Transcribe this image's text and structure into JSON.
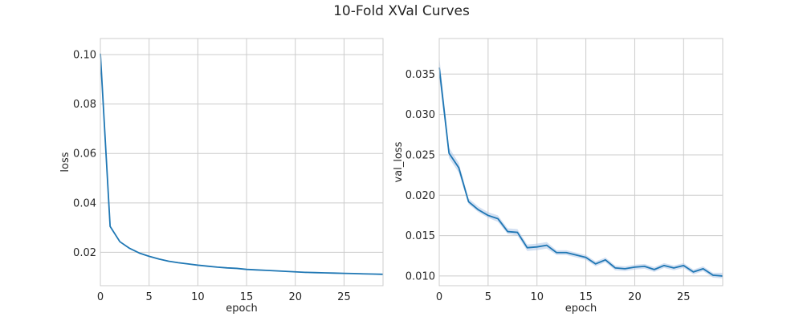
{
  "figure": {
    "title": "10-Fold XVal Curves"
  },
  "chart_data": [
    {
      "type": "line",
      "title": "",
      "xlabel": "epoch",
      "ylabel": "loss",
      "xlim": [
        0,
        29
      ],
      "ylim": [
        0.0065,
        0.1065
      ],
      "xticks": [
        0,
        5,
        10,
        15,
        20,
        25
      ],
      "yticks": [
        0.02,
        0.04,
        0.06,
        0.08,
        0.1
      ],
      "ytick_labels": [
        "0.02",
        "0.04",
        "0.06",
        "0.08",
        "0.10"
      ],
      "grid": true,
      "color": "#1f77b4",
      "series": [
        {
          "x": [
            0,
            1,
            2,
            3,
            4,
            5,
            6,
            7,
            8,
            9,
            10,
            11,
            12,
            13,
            14,
            15,
            16,
            17,
            18,
            19,
            20,
            21,
            22,
            23,
            24,
            25,
            26,
            27,
            28,
            29
          ],
          "values": [
            0.1004,
            0.0305,
            0.0243,
            0.0216,
            0.0197,
            0.0184,
            0.0173,
            0.0164,
            0.0158,
            0.0153,
            0.0148,
            0.0144,
            0.014,
            0.0137,
            0.0135,
            0.0131,
            0.0129,
            0.0127,
            0.0125,
            0.0123,
            0.0121,
            0.0119,
            0.0118,
            0.0117,
            0.0116,
            0.0115,
            0.0114,
            0.0113,
            0.0112,
            0.0111
          ]
        }
      ]
    },
    {
      "type": "line",
      "title": "",
      "xlabel": "epoch",
      "ylabel": "val_loss",
      "xlim": [
        0,
        29
      ],
      "ylim": [
        0.0088,
        0.0394
      ],
      "xticks": [
        0,
        5,
        10,
        15,
        20,
        25
      ],
      "yticks": [
        0.01,
        0.015,
        0.02,
        0.025,
        0.03,
        0.035
      ],
      "ytick_labels": [
        "0.010",
        "0.015",
        "0.020",
        "0.025",
        "0.030",
        "0.035"
      ],
      "grid": true,
      "color": "#1f77b4",
      "band_color": "#aec7e8",
      "series": [
        {
          "x": [
            0,
            1,
            2,
            3,
            4,
            5,
            6,
            7,
            8,
            9,
            10,
            11,
            12,
            13,
            14,
            15,
            16,
            17,
            18,
            19,
            20,
            21,
            22,
            23,
            24,
            25,
            26,
            27,
            28,
            29
          ],
          "values": [
            0.0358,
            0.0252,
            0.0234,
            0.0192,
            0.0182,
            0.0175,
            0.0171,
            0.0155,
            0.0154,
            0.0135,
            0.0136,
            0.0138,
            0.0129,
            0.0129,
            0.0126,
            0.0123,
            0.0115,
            0.012,
            0.011,
            0.0109,
            0.0111,
            0.0112,
            0.0108,
            0.0113,
            0.011,
            0.0113,
            0.0105,
            0.0109,
            0.0101,
            0.01
          ],
          "lower": [
            0.0345,
            0.0246,
            0.0228,
            0.0189,
            0.0179,
            0.0172,
            0.0167,
            0.0152,
            0.015,
            0.0131,
            0.0132,
            0.0134,
            0.0126,
            0.0126,
            0.0123,
            0.012,
            0.0112,
            0.0117,
            0.0107,
            0.0106,
            0.0108,
            0.0109,
            0.0105,
            0.011,
            0.0107,
            0.011,
            0.0102,
            0.0106,
            0.0098,
            0.0097
          ],
          "upper": [
            0.0372,
            0.0259,
            0.024,
            0.0196,
            0.0186,
            0.0179,
            0.0175,
            0.0159,
            0.0158,
            0.0139,
            0.014,
            0.0142,
            0.0132,
            0.0132,
            0.0129,
            0.0126,
            0.0118,
            0.0123,
            0.0113,
            0.0112,
            0.0114,
            0.0115,
            0.0111,
            0.0116,
            0.0113,
            0.0116,
            0.0108,
            0.0112,
            0.0104,
            0.0104
          ]
        }
      ]
    }
  ]
}
